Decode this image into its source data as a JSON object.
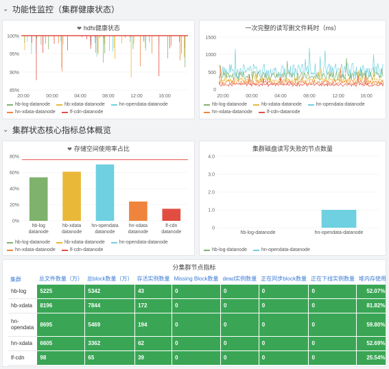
{
  "sections": {
    "functional": "功能性监控（集群健康状态）",
    "core": "集群状态核心指标总体概览"
  },
  "colors": {
    "hb_log": "#7eb26d",
    "hb_xdata": "#eab839",
    "hn_opendata": "#6ed0e0",
    "hn_xdata": "#ef843c",
    "lf_cdn": "#e24d42",
    "cell_green": "#3aa655",
    "header_blue": "#3a7bd5"
  },
  "panels": {
    "hdfs_health": {
      "title": "hdfs健康状态",
      "icon": "heart-icon",
      "y_ticks": [
        "100%",
        "95%",
        "90%",
        "85%"
      ],
      "x_ticks": [
        "20:00",
        "00:00",
        "04:00",
        "08:00",
        "12:00",
        "16:00"
      ],
      "legend": [
        "hb-log-datanode",
        "hb-xdata-datanode",
        "hn-opendata-datanode",
        "hn-xdata-datanode",
        "lf-cdn-datanode"
      ]
    },
    "rw_latency": {
      "title": "一次完整的读写删文件耗时（ms）",
      "y_ticks": [
        "1500",
        "1000",
        "500",
        "0"
      ],
      "x_ticks": [
        "20:00",
        "00:00",
        "04:00",
        "08:00",
        "12:00",
        "16:00"
      ],
      "legend": [
        "hb-log-datanode",
        "hb-xdata-datanode",
        "hn-opendata-datanode",
        "hn-xdata-datanode",
        "lf-cdn-datanode"
      ]
    },
    "storage_usage": {
      "title": "存储空间使用率占比",
      "icon": "heart-icon",
      "legend": [
        "hb-log-datanode",
        "hb-xdata-datanode",
        "hn-opendata-datanode",
        "hn-xdata-datanode",
        "lf-cdn-datanode"
      ]
    },
    "disk_failures": {
      "title": "集群磁盘读写失败的节点数量",
      "legend": [
        "hb-log-datanode",
        "hn-opendata-datanode"
      ]
    },
    "cluster_table": {
      "title": "分集群节点指标",
      "headers": [
        "集群",
        "总文件数量（万）",
        "总block数量（万）",
        "存活实例数量",
        "Missing Block数量",
        "dead实例数量",
        "正在同步block数量",
        "正在下线实例数量",
        "堆内存使用"
      ],
      "rows": [
        [
          "hb-log",
          "5225",
          "5342",
          "43",
          "0",
          "0",
          "0",
          "0",
          "52.07%"
        ],
        [
          "hb-xdata",
          "8196",
          "7844",
          "172",
          "0",
          "0",
          "0",
          "0",
          "81.82%"
        ],
        [
          "hn-opendata",
          "8695",
          "5469",
          "194",
          "0",
          "0",
          "0",
          "0",
          "59.80%"
        ],
        [
          "hn-xdata",
          "6605",
          "3362",
          "62",
          "0",
          "0",
          "0",
          "0",
          "52.69%"
        ],
        [
          "lf-cdn",
          "98",
          "65",
          "39",
          "0",
          "0",
          "0",
          "0",
          "25.54%"
        ]
      ]
    }
  },
  "chart_data": [
    {
      "type": "bar",
      "title": "存储空间使用率占比",
      "categories": [
        "hb-log datanode",
        "hb-xdata datanode",
        "hn-opendata datanode",
        "hn-xdata datanode",
        "lf-cdn datanode"
      ],
      "values": [
        54,
        61,
        70,
        24,
        15
      ],
      "y_ticks": [
        "0%",
        "20%",
        "40%",
        "60%",
        "80%"
      ],
      "ylim": [
        0,
        80
      ],
      "threshold": 76,
      "colors": [
        "#7eb26d",
        "#eab839",
        "#6ed0e0",
        "#ef843c",
        "#e24d42"
      ]
    },
    {
      "type": "bar",
      "title": "集群磁盘读写失败的节点数量",
      "categories": [
        "hb-log-datanode",
        "hn-opendata-datanode"
      ],
      "values": [
        0,
        1
      ],
      "y_ticks": [
        "0",
        "1.0",
        "2.0",
        "3.0",
        "4.0"
      ],
      "ylim": [
        0,
        4
      ],
      "colors": [
        "#7eb26d",
        "#6ed0e0"
      ]
    }
  ]
}
